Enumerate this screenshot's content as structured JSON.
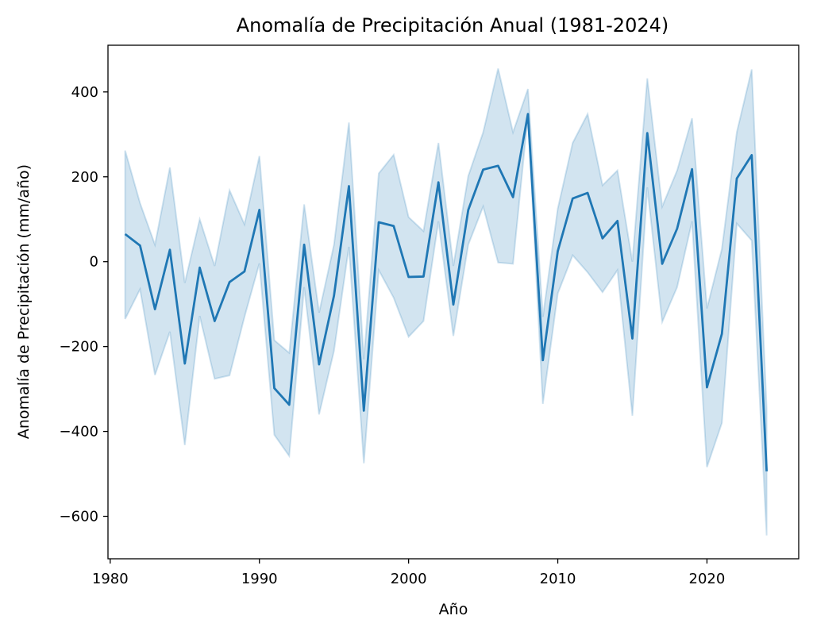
{
  "chart_data": {
    "type": "line",
    "title": "Anomalía de Precipitación Anual (1981-2024)",
    "xlabel": "Año",
    "ylabel": "Anomalía de Precipitación (mm/año)",
    "xlim": [
      1979.85,
      2026.15
    ],
    "ylim": [
      -700,
      510
    ],
    "xticks": [
      1980,
      1990,
      2000,
      2010,
      2020
    ],
    "yticks": [
      -600,
      -400,
      -200,
      0,
      200,
      400
    ],
    "ytick_labels": [
      "−600",
      "−400",
      "−200",
      "0",
      "200",
      "400"
    ],
    "grid": false,
    "line_color": "#1f77b4",
    "band_color": "#1f77b4",
    "x": [
      1981,
      1982,
      1983,
      1984,
      1985,
      1986,
      1987,
      1988,
      1989,
      1990,
      1991,
      1992,
      1993,
      1994,
      1995,
      1996,
      1997,
      1998,
      1999,
      2000,
      2001,
      2002,
      2003,
      2004,
      2005,
      2006,
      2007,
      2008,
      2009,
      2010,
      2011,
      2012,
      2013,
      2014,
      2015,
      2016,
      2017,
      2018,
      2019,
      2020,
      2021,
      2022,
      2023,
      2024
    ],
    "series": [
      {
        "values": [
          65,
          38,
          -112,
          28,
          -240,
          -14,
          -140,
          -48,
          -23,
          122,
          -298,
          -337,
          40,
          -242,
          -80,
          178,
          -351,
          93,
          84,
          -36,
          -35,
          187,
          -101,
          122,
          217,
          226,
          152,
          348,
          -232,
          25,
          149,
          162,
          55,
          96,
          -181,
          303,
          -5,
          78,
          218,
          -296,
          -170,
          196,
          251,
          -494
        ],
        "lower": [
          -135,
          -65,
          -267,
          -165,
          -432,
          -128,
          -276,
          -268,
          -130,
          -4,
          -408,
          -458,
          -60,
          -360,
          -210,
          35,
          -475,
          -20,
          -85,
          -177,
          -140,
          95,
          -175,
          40,
          130,
          -2,
          -5,
          345,
          -335,
          -75,
          15,
          -25,
          -72,
          -20,
          -363,
          175,
          -142,
          -60,
          95,
          -484,
          -380,
          90,
          50,
          -645
        ],
        "upper": [
          262,
          138,
          40,
          222,
          -50,
          100,
          -10,
          168,
          88,
          249,
          -185,
          -215,
          135,
          -120,
          40,
          328,
          -230,
          208,
          252,
          105,
          72,
          280,
          -10,
          202,
          305,
          455,
          305,
          407,
          -130,
          125,
          280,
          348,
          180,
          215,
          0,
          432,
          130,
          215,
          338,
          -110,
          30,
          305,
          453,
          -345
        ]
      }
    ]
  }
}
